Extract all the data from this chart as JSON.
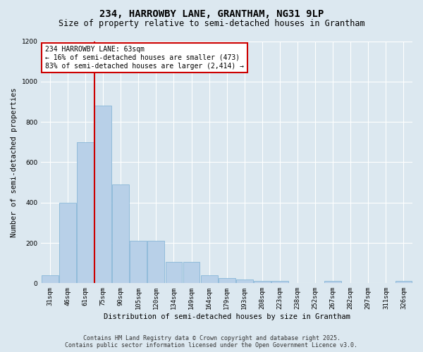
{
  "title_line1": "234, HARROWBY LANE, GRANTHAM, NG31 9LP",
  "title_line2": "Size of property relative to semi-detached houses in Grantham",
  "xlabel": "Distribution of semi-detached houses by size in Grantham",
  "ylabel": "Number of semi-detached properties",
  "categories": [
    "31sqm",
    "46sqm",
    "61sqm",
    "75sqm",
    "90sqm",
    "105sqm",
    "120sqm",
    "134sqm",
    "149sqm",
    "164sqm",
    "179sqm",
    "193sqm",
    "208sqm",
    "223sqm",
    "238sqm",
    "252sqm",
    "267sqm",
    "282sqm",
    "297sqm",
    "311sqm",
    "326sqm"
  ],
  "values": [
    40,
    400,
    700,
    880,
    490,
    210,
    210,
    105,
    105,
    40,
    25,
    18,
    10,
    10,
    0,
    0,
    10,
    0,
    0,
    0,
    10
  ],
  "bar_color": "#b8d0e8",
  "bar_edge_color": "#7aafd4",
  "annotation_text": "234 HARROWBY LANE: 63sqm\n← 16% of semi-detached houses are smaller (473)\n83% of semi-detached houses are larger (2,414) →",
  "annotation_box_color": "#ffffff",
  "annotation_box_edge_color": "#cc0000",
  "red_line_color": "#cc0000",
  "ylim": [
    0,
    1200
  ],
  "yticks": [
    0,
    200,
    400,
    600,
    800,
    1000,
    1200
  ],
  "bg_color": "#dce8f0",
  "plot_bg_color": "#dce8f0",
  "grid_color": "#ffffff",
  "footer_line1": "Contains HM Land Registry data © Crown copyright and database right 2025.",
  "footer_line2": "Contains public sector information licensed under the Open Government Licence v3.0.",
  "title_fontsize": 10,
  "subtitle_fontsize": 8.5,
  "axis_label_fontsize": 7.5,
  "tick_fontsize": 6.5,
  "annotation_fontsize": 7,
  "footer_fontsize": 6
}
